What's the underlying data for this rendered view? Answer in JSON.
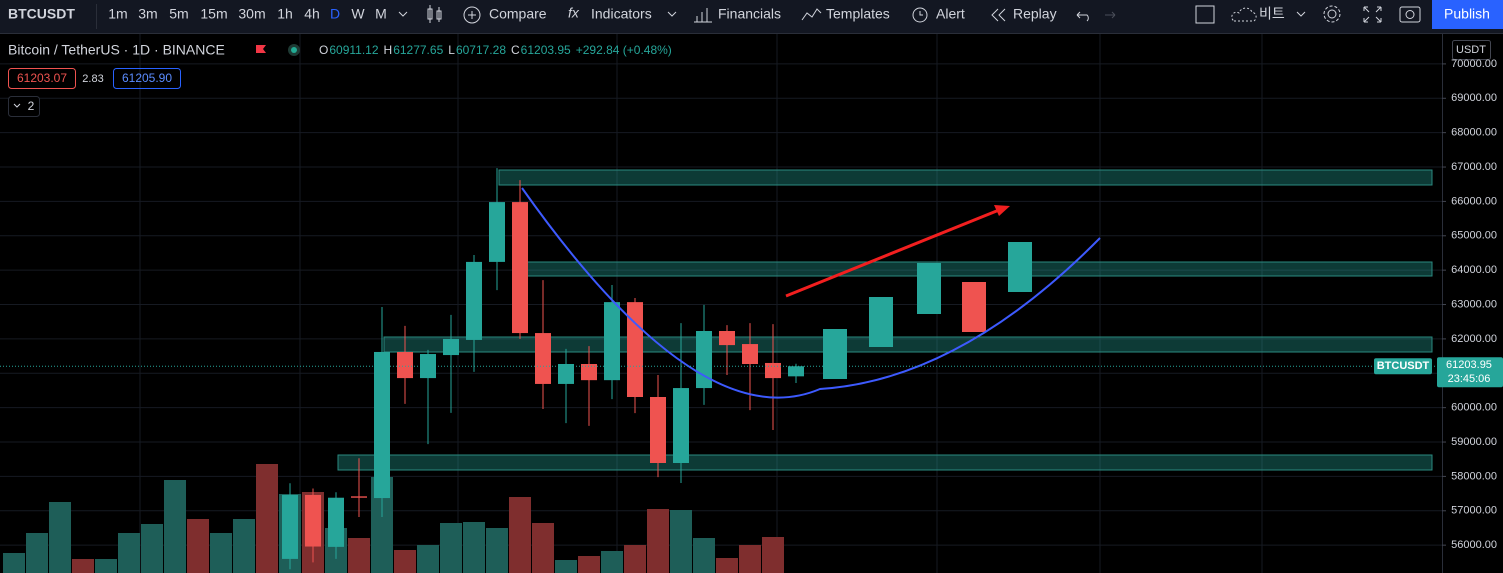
{
  "toolbar": {
    "symbol": "BTCUSDT",
    "intervals": [
      "1m",
      "3m",
      "5m",
      "15m",
      "30m",
      "1h",
      "4h",
      "D",
      "W",
      "M"
    ],
    "active_interval_index": 7,
    "buttons": [
      "Compare",
      "Indicators",
      "Financials",
      "Templates",
      "Alert",
      "Replay"
    ],
    "layout_name": "비트",
    "publish": "Publish"
  },
  "legend": {
    "title": "Bitcoin / TetherUS · 1D · BINANCE",
    "ohlc": [
      {
        "key": "O",
        "value": "60911.12"
      },
      {
        "key": "H",
        "value": "61277.65"
      },
      {
        "key": "L",
        "value": "60717.28"
      },
      {
        "key": "C",
        "value": "61203.95"
      }
    ],
    "change": "+292.84 (+0.48%)",
    "bid": "61203.07",
    "spread": "2.83",
    "ask": "61205.90",
    "collapsed_count": "2"
  },
  "chart_data": {
    "type": "candlestick",
    "currency": "USDT",
    "ylim": [
      55190,
      70870
    ],
    "yticks": [
      {
        "value": 70000,
        "label": "70000.00"
      },
      {
        "value": 69000,
        "label": "69000.00"
      },
      {
        "value": 68000,
        "label": "68000.00"
      },
      {
        "value": 67000,
        "label": "67000.00"
      },
      {
        "value": 66000,
        "label": "66000.00"
      },
      {
        "value": 65000,
        "label": "65000.00"
      },
      {
        "value": 64000,
        "label": "64000.00"
      },
      {
        "value": 63000,
        "label": "63000.00"
      },
      {
        "value": 62000,
        "label": "62000.00"
      },
      {
        "value": 61000,
        "label": "61000.00"
      },
      {
        "value": 60000,
        "label": "60000.00"
      },
      {
        "value": 59000,
        "label": "59000.00"
      },
      {
        "value": 58000,
        "label": "58000.00"
      },
      {
        "value": 57000,
        "label": "57000.00"
      },
      {
        "value": 56000,
        "label": "56000.00"
      }
    ],
    "up_color": "#26a69a",
    "down_color": "#ef5350",
    "open": [
      null,
      null,
      null,
      null,
      null,
      null,
      null,
      null,
      null,
      null,
      null,
      null,
      55600,
      57460,
      55950,
      57420,
      57370,
      61620,
      60860,
      61530,
      61970,
      64240,
      65980,
      62170,
      60690,
      61270,
      60800,
      63070,
      60310,
      58390,
      60570,
      62230,
      61850,
      61300,
      60911.12
    ],
    "high": [
      null,
      null,
      null,
      null,
      null,
      null,
      null,
      null,
      null,
      null,
      null,
      null,
      57800,
      57650,
      57540,
      58530,
      62930,
      62380,
      61680,
      62700,
      64440,
      66970,
      66620,
      63710,
      61710,
      61790,
      63570,
      63190,
      60950,
      62460,
      62990,
      62400,
      62460,
      62430,
      61277.65
    ],
    "low": [
      null,
      null,
      null,
      null,
      null,
      null,
      null,
      null,
      null,
      null,
      null,
      null,
      55300,
      55500,
      55600,
      56820,
      56820,
      60110,
      58940,
      59850,
      61040,
      63420,
      62000,
      59960,
      59550,
      59470,
      60250,
      59840,
      57980,
      57810,
      60080,
      60950,
      59930,
      59350,
      60717.28
    ],
    "close": [
      null,
      null,
      null,
      null,
      null,
      null,
      null,
      null,
      null,
      null,
      null,
      null,
      57460,
      55960,
      57380,
      57380,
      61620,
      60860,
      61560,
      62000,
      64240,
      65980,
      62170,
      60690,
      61270,
      60800,
      63070,
      60310,
      58390,
      60570,
      62230,
      61820,
      61270,
      60860,
      61203.95
    ],
    "volume": {
      "values": [
        20,
        40,
        71,
        14,
        14,
        40,
        49,
        93,
        54,
        40,
        54,
        109,
        79,
        81,
        45,
        35,
        96,
        23,
        28,
        50,
        51,
        45,
        76,
        50,
        13,
        17,
        22,
        28,
        64,
        63,
        35,
        15,
        28,
        36,
        null
      ],
      "direction": [
        "up",
        "up",
        "up",
        "down",
        "up",
        "up",
        "up",
        "up",
        "down",
        "up",
        "up",
        "down",
        "up",
        "down",
        "up",
        "down",
        "up",
        "down",
        "up",
        "up",
        "up",
        "up",
        "down",
        "down",
        "up",
        "down",
        "up",
        "down",
        "down",
        "up",
        "up",
        "down",
        "down",
        "down",
        null
      ],
      "up_color": "#1e5e58",
      "down_color": "#7f2e2e"
    },
    "last_price": {
      "symbol_label": "BTCUSDT",
      "value": 61203.95,
      "label": "61203.95",
      "countdown": "23:45:06"
    }
  }
}
